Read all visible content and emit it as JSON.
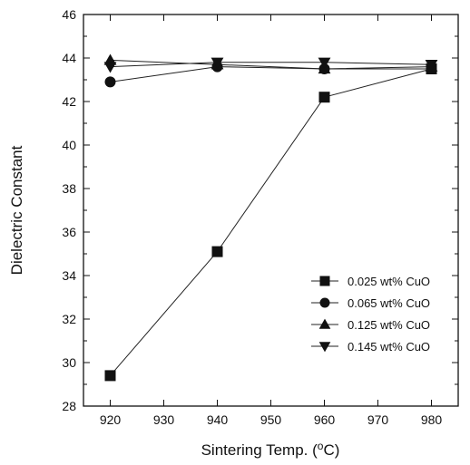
{
  "chart_data": {
    "type": "line",
    "xlabel": "Sintering Temp. (",
    "xlabel_sup": "o",
    "xlabel_suffix": "C)",
    "ylabel": "Dielectric Constant",
    "x": [
      920,
      940,
      960,
      980
    ],
    "xlim": [
      915,
      985
    ],
    "ylim": [
      28,
      46
    ],
    "xticks": [
      920,
      930,
      940,
      950,
      960,
      970,
      980
    ],
    "yticks": [
      28,
      30,
      32,
      34,
      36,
      38,
      40,
      42,
      44,
      46
    ],
    "grid": false,
    "legend_position": "bottom-right",
    "series": [
      {
        "name": "0.025 wt% CuO",
        "marker": "square",
        "values": [
          29.4,
          35.1,
          42.2,
          43.5
        ]
      },
      {
        "name": "0.065 wt% CuO",
        "marker": "circle",
        "values": [
          42.9,
          43.6,
          43.5,
          43.5
        ]
      },
      {
        "name": "0.125 wt% CuO",
        "marker": "triangle-up",
        "values": [
          43.9,
          43.7,
          43.5,
          43.6
        ]
      },
      {
        "name": "0.145 wt% CuO",
        "marker": "triangle-down",
        "values": [
          43.6,
          43.8,
          43.8,
          43.7
        ]
      }
    ]
  }
}
